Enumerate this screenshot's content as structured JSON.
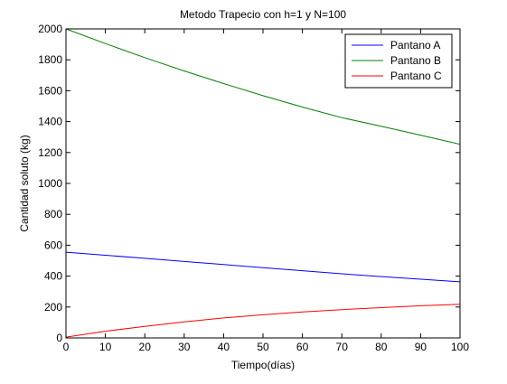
{
  "chart_data": {
    "type": "line",
    "title": "Metodo Trapecio con h=1 y N=100",
    "xlabel": "Tiempo(días)",
    "ylabel": "Cantidad soluto (kg)",
    "xlim": [
      0,
      100
    ],
    "ylim": [
      0,
      2000
    ],
    "xticks": [
      0,
      10,
      20,
      30,
      40,
      50,
      60,
      70,
      80,
      90,
      100
    ],
    "yticks": [
      0,
      200,
      400,
      600,
      800,
      1000,
      1200,
      1400,
      1600,
      1800,
      2000
    ],
    "grid": false,
    "legend_position": "top-right",
    "x": [
      0,
      10,
      20,
      30,
      40,
      50,
      60,
      70,
      80,
      90,
      100
    ],
    "series": [
      {
        "name": "Pantano A",
        "color": "#0000ff",
        "values": [
          555,
          535,
          515,
          495,
          475,
          455,
          435,
          415,
          397,
          380,
          363
        ]
      },
      {
        "name": "Pantano B",
        "color": "#008000",
        "values": [
          2000,
          1905,
          1814,
          1728,
          1646,
          1568,
          1494,
          1426,
          1370,
          1312,
          1253
        ]
      },
      {
        "name": "Pantano C",
        "color": "#ff0000",
        "values": [
          5,
          43,
          75,
          104,
          129,
          150,
          168,
          183,
          196,
          208,
          218
        ]
      }
    ]
  }
}
